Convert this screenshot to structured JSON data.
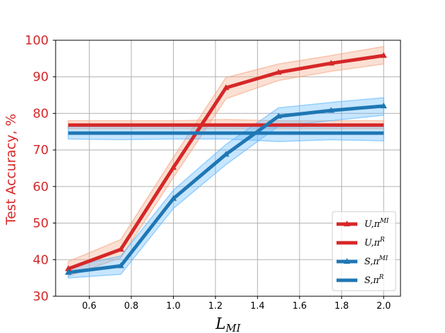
{
  "chart_data": {
    "type": "line",
    "title": "",
    "xlabel": "L",
    "xlabel_sub": "MI",
    "ylabel": "Test  Accuracy, %",
    "xlim": [
      0.44,
      2.08
    ],
    "ylim": [
      30,
      100
    ],
    "xticks": [
      0.6,
      0.8,
      1.0,
      1.2,
      1.4,
      1.6,
      1.8,
      2.0
    ],
    "xtick_labels": [
      "0.6",
      "0.8",
      "1.0",
      "1.2",
      "1.4",
      "1.6",
      "1.8",
      "2.0"
    ],
    "yticks": [
      30,
      40,
      50,
      60,
      70,
      80,
      90,
      100
    ],
    "ytick_labels": [
      "30",
      "40",
      "50",
      "60",
      "70",
      "80",
      "90",
      "100"
    ],
    "grid": true,
    "legend_position": "lower-right",
    "ylabel_color": "#d62728",
    "series": [
      {
        "name": "U,π^MI",
        "name_base": "U,π",
        "name_sup": "MI",
        "color": "#d62728",
        "band_color": "#f4a582",
        "marker": "triangle",
        "x": [
          0.5,
          0.75,
          1.0,
          1.25,
          1.5,
          1.75,
          2.0
        ],
        "y": [
          37.5,
          42.8,
          65.2,
          87.0,
          91.2,
          93.7,
          95.8
        ],
        "lower": [
          35.5,
          40.5,
          62.5,
          84.0,
          89.0,
          91.5,
          93.5
        ],
        "upper": [
          39.5,
          45.5,
          68.0,
          89.8,
          93.5,
          95.8,
          98.3
        ]
      },
      {
        "name": "U,π^R",
        "name_base": "U,π",
        "name_sup": "R",
        "color": "#d62728",
        "band_color": "#f4a582",
        "marker": "none",
        "x": [
          0.5,
          0.75,
          1.0,
          1.25,
          1.5,
          1.75,
          2.0
        ],
        "y": [
          76.8,
          76.8,
          76.8,
          76.8,
          76.8,
          76.8,
          76.8
        ],
        "lower": [
          75.8,
          75.8,
          75.8,
          75.8,
          75.8,
          75.8,
          75.8
        ],
        "upper": [
          78.0,
          78.0,
          78.0,
          78.3,
          78.0,
          78.0,
          78.0
        ]
      },
      {
        "name": "S,π^MI",
        "name_base": "S,π",
        "name_sup": "MI",
        "color": "#1f77b4",
        "band_color": "#5fb8ff",
        "marker": "triangle",
        "x": [
          0.5,
          0.75,
          1.0,
          1.25,
          1.5,
          1.75,
          2.0
        ],
        "y": [
          36.5,
          38.3,
          56.7,
          68.8,
          79.2,
          80.8,
          82.0
        ],
        "lower": [
          35.0,
          36.0,
          54.0,
          66.0,
          76.5,
          78.0,
          79.5
        ],
        "upper": [
          38.0,
          41.0,
          59.0,
          71.5,
          81.5,
          83.0,
          84.3
        ]
      },
      {
        "name": "S,π^R",
        "name_base": "S,π",
        "name_sup": "R",
        "color": "#1f77b4",
        "band_color": "#5fb8ff",
        "marker": "none",
        "x": [
          0.5,
          0.75,
          1.0,
          1.25,
          1.5,
          1.75,
          2.0
        ],
        "y": [
          74.6,
          74.6,
          74.6,
          74.6,
          74.6,
          74.6,
          74.6
        ],
        "lower": [
          73.0,
          72.8,
          73.0,
          73.0,
          72.3,
          72.8,
          72.5
        ],
        "upper": [
          76.5,
          76.5,
          76.5,
          76.5,
          76.3,
          76.5,
          76.5
        ]
      }
    ]
  }
}
